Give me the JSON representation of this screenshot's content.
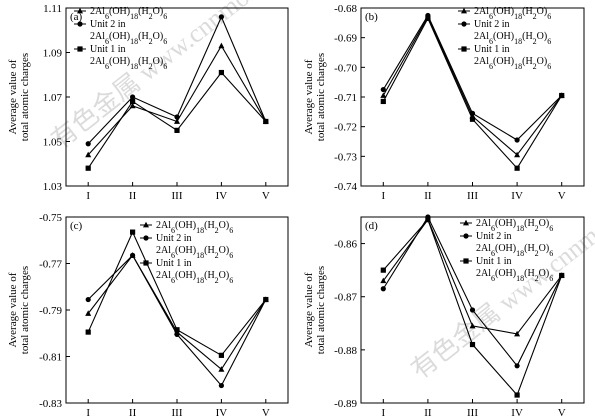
{
  "chart_data": [
    {
      "type": "line",
      "panel_label": "(a)",
      "categories": [
        "I",
        "II",
        "III",
        "IV",
        "V"
      ],
      "ylabel_line1": "Average value of",
      "ylabel_line2": "total atomic charges",
      "ylim": [
        1.03,
        1.11
      ],
      "yticks": [
        "1.03",
        "1.05",
        "1.07",
        "1.09",
        "1.11"
      ],
      "legend_position": "top-left",
      "series": [
        {
          "name": "2Al6(OH)18(H2O)6",
          "marker": "triangle",
          "values": [
            1.044,
            1.066,
            1.059,
            1.093,
            1.059
          ]
        },
        {
          "name": "Unit 2 in 2Al6(OH)18(H2O)6",
          "marker": "circle",
          "values": [
            1.049,
            1.07,
            1.061,
            1.106,
            1.059
          ]
        },
        {
          "name": "Unit 1 in 2Al6(OH)18(H2O)6",
          "marker": "square",
          "values": [
            1.038,
            1.068,
            1.055,
            1.081,
            1.059
          ]
        }
      ]
    },
    {
      "type": "line",
      "panel_label": "(b)",
      "categories": [
        "I",
        "II",
        "III",
        "IV",
        "V"
      ],
      "ylabel_line1": "Average value of",
      "ylabel_line2": "total atomic charges",
      "ylim": [
        -0.74,
        -0.68
      ],
      "yticks": [
        "-0.68",
        "-0.69",
        "-0.70",
        "-0.71",
        "-0.72",
        "-0.73",
        "-0.74"
      ],
      "legend_position": "top-right",
      "series": [
        {
          "name": "2Al6(OH)18(H2O)6",
          "marker": "triangle",
          "values": [
            -0.7095,
            -0.683,
            -0.7165,
            -0.7295,
            -0.7095
          ]
        },
        {
          "name": "Unit 2 in 2Al6(OH)18(H2O)6",
          "marker": "circle",
          "values": [
            -0.7075,
            -0.6825,
            -0.7155,
            -0.7245,
            -0.7095
          ]
        },
        {
          "name": "Unit 1 in 2Al6(OH)18(H2O)6",
          "marker": "square",
          "values": [
            -0.7115,
            -0.6835,
            -0.7175,
            -0.734,
            -0.7095
          ]
        }
      ]
    },
    {
      "type": "line",
      "panel_label": "(c)",
      "categories": [
        "I",
        "II",
        "III",
        "IV",
        "V"
      ],
      "ylabel_line1": "Average value of",
      "ylabel_line2": "total atomic charges",
      "ylim": [
        -0.83,
        -0.75
      ],
      "yticks": [
        "-0.75",
        "-0.77",
        "-0.79",
        "-0.81",
        "-0.83"
      ],
      "legend_position": "top-right",
      "series": [
        {
          "name": "2Al6(OH)18(H2O)6",
          "marker": "triangle",
          "values": [
            -0.7915,
            -0.7665,
            -0.7995,
            -0.8155,
            -0.7855
          ]
        },
        {
          "name": "Unit 2 in 2Al6(OH)18(H2O)6",
          "marker": "circle",
          "values": [
            -0.7855,
            -0.7665,
            -0.8005,
            -0.8225,
            -0.7855
          ]
        },
        {
          "name": "Unit 1 in 2Al6(OH)18(H2O)6",
          "marker": "square",
          "values": [
            -0.7995,
            -0.7565,
            -0.7985,
            -0.8095,
            -0.7855
          ]
        }
      ]
    },
    {
      "type": "line",
      "panel_label": "(d)",
      "categories": [
        "I",
        "II",
        "III",
        "IV",
        "V"
      ],
      "ylabel_line1": "Average value of",
      "ylabel_line2": "total atomic charges",
      "ylim": [
        -0.89,
        -0.855
      ],
      "yticks": [
        "-0.86",
        "-0.87",
        "-0.88",
        "-0.89"
      ],
      "legend_position": "top-right",
      "series": [
        {
          "name": "2Al6(OH)18(H2O)6",
          "marker": "triangle",
          "values": [
            -0.867,
            -0.8555,
            -0.8755,
            -0.877,
            -0.866
          ]
        },
        {
          "name": "Unit 2 in 2Al6(OH)18(H2O)6",
          "marker": "circle",
          "values": [
            -0.8685,
            -0.855,
            -0.8725,
            -0.883,
            -0.866
          ]
        },
        {
          "name": "Unit 1 in 2Al6(OH)18(H2O)6",
          "marker": "square",
          "values": [
            -0.865,
            -0.8555,
            -0.879,
            -0.8885,
            -0.866
          ]
        }
      ]
    }
  ]
}
